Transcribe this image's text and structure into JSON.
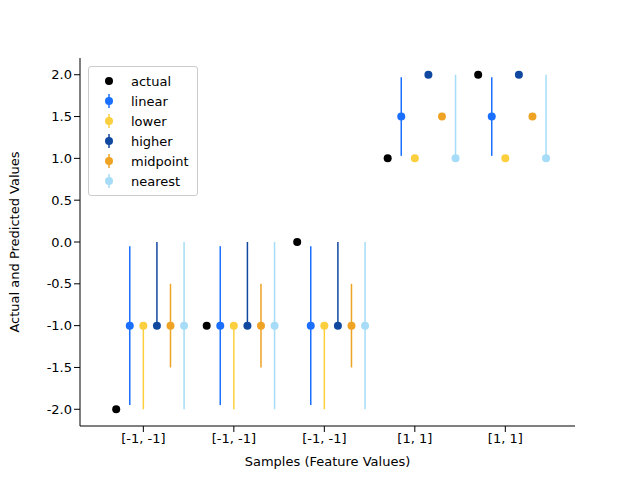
{
  "chart_data": {
    "type": "scatter",
    "x_label": "Samples (Feature Values)",
    "y_label": "Actual and Predicted Values",
    "categories": [
      "[-1, -1]",
      "[-1, -1]",
      "[-1, -1]",
      "[1, 1]",
      "[1, 1]"
    ],
    "ylim": [
      -2.2,
      2.2
    ],
    "yticks": [
      {
        "value": -2,
        "label": "-2.0"
      },
      {
        "value": -1.5,
        "label": "-1.5"
      },
      {
        "value": -1,
        "label": "-1.0"
      },
      {
        "value": -0.5,
        "label": "-0.5"
      },
      {
        "value": 0,
        "label": "0.0"
      },
      {
        "value": 0.5,
        "label": "0.5"
      },
      {
        "value": 1,
        "label": "1.0"
      },
      {
        "value": 1.5,
        "label": "1.5"
      },
      {
        "value": 2,
        "label": "2.0"
      }
    ],
    "grid": false,
    "legend": "upper left",
    "marker": "circle",
    "series": [
      {
        "name": "actual",
        "color": "#000000",
        "values": [
          -2,
          -1,
          0,
          1,
          2
        ]
      },
      {
        "name": "linear",
        "color": "#1a6fff",
        "values": [
          -1,
          -1,
          -1,
          1.5,
          1.5
        ],
        "errors": [
          [
            0.95,
            0.95
          ],
          [
            0.95,
            0.95
          ],
          [
            0.95,
            0.95
          ],
          [
            0.47,
            0.47
          ],
          [
            0.47,
            0.47
          ]
        ]
      },
      {
        "name": "lower",
        "color": "#fccf3e",
        "values": [
          -1,
          -1,
          -1,
          1,
          1
        ],
        "errors": [
          [
            1,
            0
          ],
          [
            1,
            0
          ],
          [
            1,
            0
          ],
          [
            0,
            0
          ],
          [
            0,
            0
          ]
        ]
      },
      {
        "name": "higher",
        "color": "#1048a0",
        "values": [
          -1,
          -1,
          -1,
          2,
          2
        ],
        "errors": [
          [
            0,
            1
          ],
          [
            0,
            1
          ],
          [
            0,
            1
          ],
          [
            0,
            0
          ],
          [
            0,
            0
          ]
        ]
      },
      {
        "name": "midpoint",
        "color": "#efa325",
        "values": [
          -1,
          -1,
          -1,
          1.5,
          1.5
        ],
        "errors": [
          [
            0.5,
            0.5
          ],
          [
            0.5,
            0.5
          ],
          [
            0.5,
            0.5
          ],
          [
            0,
            0
          ],
          [
            0,
            0
          ]
        ]
      },
      {
        "name": "nearest",
        "color": "#a6dcf7",
        "values": [
          -1,
          -1,
          -1,
          1,
          1
        ],
        "errors": [
          [
            1,
            1
          ],
          [
            1,
            1
          ],
          [
            1,
            1
          ],
          [
            0,
            1
          ],
          [
            0,
            1
          ]
        ]
      }
    ]
  }
}
